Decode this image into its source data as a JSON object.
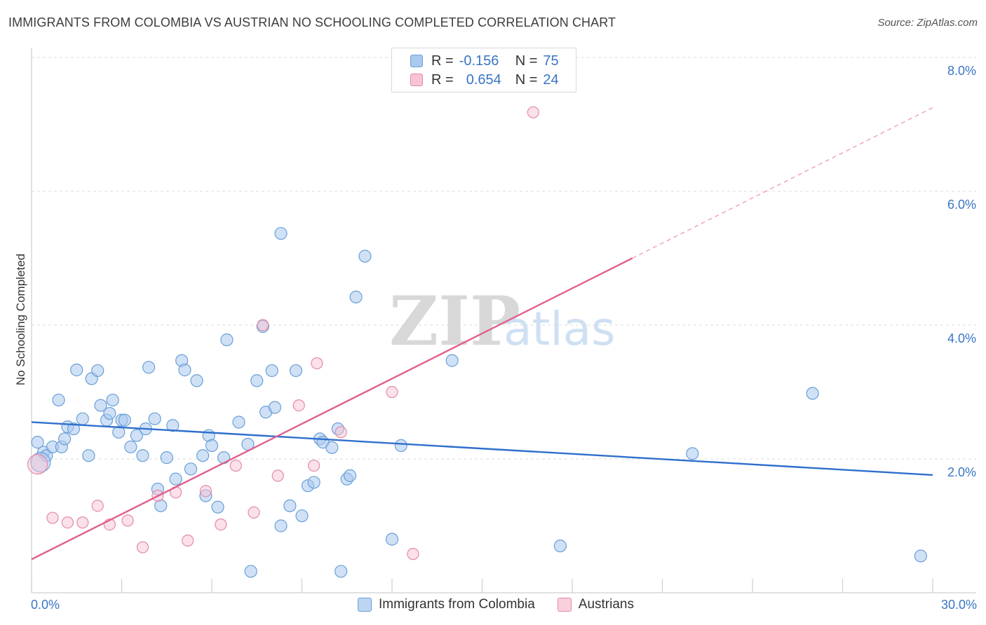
{
  "title": "IMMIGRANTS FROM COLOMBIA VS AUSTRIAN NO SCHOOLING COMPLETED CORRELATION CHART",
  "source": "Source: ZipAtlas.com",
  "watermark": {
    "zip": "ZIP",
    "atlas": "atlas"
  },
  "legend": {
    "rows": [
      {
        "r_label": "R =",
        "r_value": "-0.156",
        "n_label": "N =",
        "n_value": "75",
        "color": "#a9c9ee",
        "border": "#6a9fd8"
      },
      {
        "r_label": "R =",
        "r_value": "0.654",
        "n_label": "N =",
        "n_value": "24",
        "color": "#f7c3d3",
        "border": "#e48aa8"
      }
    ]
  },
  "bottom_legend": [
    {
      "label": "Immigrants from Colombia",
      "color": "#bcd6f2",
      "border": "#6a9fd8"
    },
    {
      "label": "Austrians",
      "color": "#f9d0dc",
      "border": "#e48aa8"
    }
  ],
  "chart_data": {
    "type": "scatter",
    "title": "IMMIGRANTS FROM COLOMBIA VS AUSTRIAN NO SCHOOLING COMPLETED CORRELATION CHART",
    "xlabel": "",
    "ylabel": "No Schooling Completed",
    "xlim": [
      0,
      30
    ],
    "ylim": [
      0,
      8.3
    ],
    "x_tick_labels": [
      "0.0%",
      "30.0%"
    ],
    "y_ticks": [
      2,
      4,
      6,
      8
    ],
    "y_tick_labels": [
      "2.0%",
      "4.0%",
      "6.0%",
      "8.0%"
    ],
    "grid": "horizontal dashed",
    "legend_position": "top-center",
    "series": [
      {
        "name": "Immigrants from Colombia",
        "color": "#a9c9ee",
        "edge": "#6a9fd8",
        "trend": {
          "x": [
            0,
            30
          ],
          "y": [
            2.55,
            1.76
          ],
          "color": "#2f6fcc"
        },
        "points": [
          [
            0.2,
            2.25
          ],
          [
            0.4,
            2.1
          ],
          [
            0.5,
            2.05
          ],
          [
            0.7,
            2.18
          ],
          [
            0.9,
            2.88
          ],
          [
            1.0,
            2.18
          ],
          [
            1.1,
            2.3
          ],
          [
            1.2,
            2.48
          ],
          [
            1.4,
            2.45
          ],
          [
            1.5,
            3.33
          ],
          [
            1.7,
            2.6
          ],
          [
            1.9,
            2.05
          ],
          [
            2.0,
            3.2
          ],
          [
            2.2,
            3.32
          ],
          [
            2.3,
            2.8
          ],
          [
            2.5,
            2.58
          ],
          [
            2.6,
            2.68
          ],
          [
            2.7,
            2.88
          ],
          [
            2.9,
            2.4
          ],
          [
            3.0,
            2.58
          ],
          [
            3.1,
            2.58
          ],
          [
            3.3,
            2.18
          ],
          [
            3.5,
            2.35
          ],
          [
            3.7,
            2.05
          ],
          [
            3.8,
            2.45
          ],
          [
            3.9,
            3.37
          ],
          [
            4.1,
            2.6
          ],
          [
            4.2,
            1.55
          ],
          [
            4.3,
            1.3
          ],
          [
            4.5,
            2.02
          ],
          [
            4.7,
            2.5
          ],
          [
            4.8,
            1.7
          ],
          [
            5.0,
            3.47
          ],
          [
            5.1,
            3.33
          ],
          [
            5.3,
            1.85
          ],
          [
            5.5,
            3.17
          ],
          [
            5.7,
            2.05
          ],
          [
            5.8,
            1.45
          ],
          [
            5.9,
            2.35
          ],
          [
            6.0,
            2.2
          ],
          [
            6.2,
            1.28
          ],
          [
            6.4,
            2.02
          ],
          [
            6.5,
            3.78
          ],
          [
            6.9,
            2.55
          ],
          [
            7.2,
            2.22
          ],
          [
            7.3,
            0.32
          ],
          [
            7.5,
            3.17
          ],
          [
            7.7,
            3.98
          ],
          [
            7.8,
            2.7
          ],
          [
            8.0,
            3.32
          ],
          [
            8.1,
            2.77
          ],
          [
            8.3,
            1.0
          ],
          [
            8.3,
            5.37
          ],
          [
            8.6,
            1.3
          ],
          [
            8.8,
            3.32
          ],
          [
            9.0,
            1.15
          ],
          [
            9.2,
            1.6
          ],
          [
            9.4,
            1.65
          ],
          [
            9.6,
            2.3
          ],
          [
            9.7,
            2.25
          ],
          [
            10.0,
            2.17
          ],
          [
            10.2,
            2.45
          ],
          [
            10.3,
            0.32
          ],
          [
            10.5,
            1.7
          ],
          [
            10.6,
            1.75
          ],
          [
            10.8,
            4.42
          ],
          [
            11.1,
            5.03
          ],
          [
            12.0,
            0.8
          ],
          [
            12.3,
            2.2
          ],
          [
            14.0,
            3.47
          ],
          [
            17.6,
            0.7
          ],
          [
            22.0,
            2.08
          ],
          [
            26.0,
            2.98
          ],
          [
            29.6,
            0.55
          ],
          [
            0.3,
            1.95
          ]
        ]
      },
      {
        "name": "Austrians",
        "color": "#f7c3d3",
        "edge": "#e48aa8",
        "trend": {
          "x": [
            0,
            20
          ],
          "y": [
            0.5,
            5.0
          ],
          "color": "#e0608e",
          "dashed_extension": {
            "x": [
              20,
              30
            ],
            "y": [
              5.0,
              7.25
            ]
          }
        },
        "points": [
          [
            0.2,
            1.92
          ],
          [
            0.7,
            1.12
          ],
          [
            1.2,
            1.05
          ],
          [
            1.7,
            1.05
          ],
          [
            2.2,
            1.3
          ],
          [
            2.6,
            1.02
          ],
          [
            3.2,
            1.08
          ],
          [
            3.7,
            0.68
          ],
          [
            4.2,
            1.45
          ],
          [
            4.8,
            1.5
          ],
          [
            5.2,
            0.78
          ],
          [
            5.8,
            1.52
          ],
          [
            6.3,
            1.02
          ],
          [
            6.8,
            1.9
          ],
          [
            7.4,
            1.2
          ],
          [
            7.7,
            4.0
          ],
          [
            8.2,
            1.75
          ],
          [
            8.9,
            2.8
          ],
          [
            9.4,
            1.9
          ],
          [
            9.5,
            3.43
          ],
          [
            10.3,
            2.4
          ],
          [
            12.0,
            3.0
          ],
          [
            12.7,
            0.58
          ],
          [
            16.7,
            7.18
          ]
        ]
      }
    ]
  }
}
